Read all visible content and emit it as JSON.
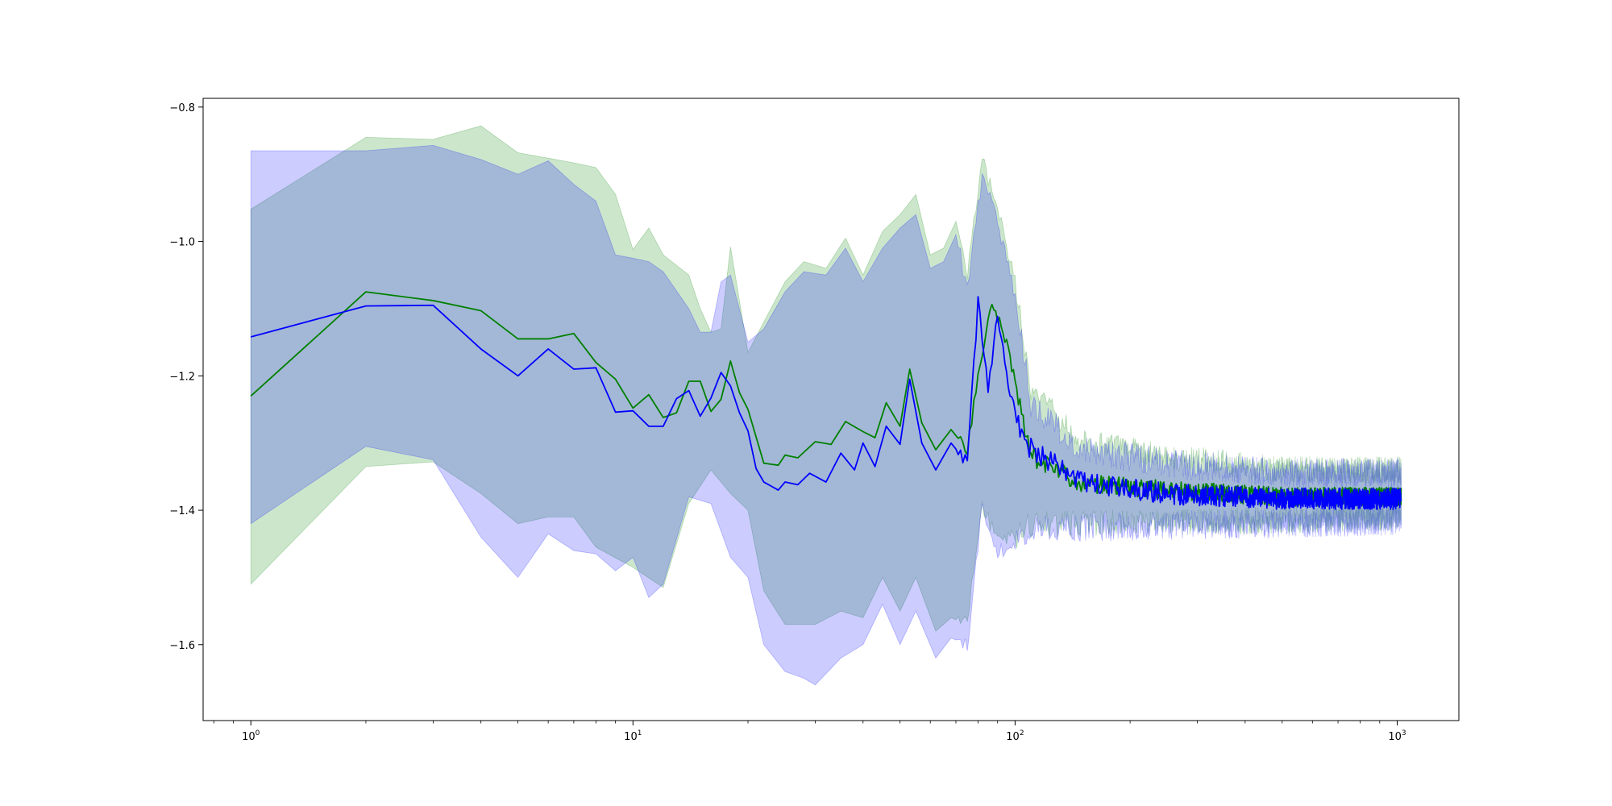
{
  "chart_data": {
    "type": "line",
    "title": "",
    "xlabel": "",
    "ylabel": "",
    "xscale": "log",
    "xlim": [
      0.75,
      1450
    ],
    "ylim": [
      -1.713,
      -0.787
    ],
    "grid": false,
    "legend": "none",
    "x_ticks": [
      {
        "base": "10",
        "exp": "0",
        "value": 1
      },
      {
        "base": "10",
        "exp": "1",
        "value": 10
      },
      {
        "base": "10",
        "exp": "2",
        "value": 100
      },
      {
        "base": "10",
        "exp": "3",
        "value": 1000
      }
    ],
    "y_ticks": [
      {
        "label": "−0.8",
        "value": -0.8
      },
      {
        "label": "−1.0",
        "value": -1.0
      },
      {
        "label": "−1.2",
        "value": -1.2
      },
      {
        "label": "−1.4",
        "value": -1.4
      },
      {
        "label": "−1.6",
        "value": -1.6
      }
    ],
    "series": [
      {
        "color": "#008000",
        "band_color": "#008000",
        "mean_anchors": [
          [
            1,
            -1.23
          ],
          [
            2,
            -1.075
          ],
          [
            3,
            -1.088
          ],
          [
            4,
            -1.103
          ],
          [
            5,
            -1.145
          ],
          [
            6,
            -1.145
          ],
          [
            7,
            -1.137
          ],
          [
            8,
            -1.18
          ],
          [
            9,
            -1.205
          ],
          [
            10,
            -1.248
          ],
          [
            11,
            -1.228
          ],
          [
            12,
            -1.262
          ],
          [
            13,
            -1.255
          ],
          [
            14,
            -1.208
          ],
          [
            15,
            -1.208
          ],
          [
            16,
            -1.253
          ],
          [
            17,
            -1.235
          ],
          [
            18,
            -1.178
          ],
          [
            19,
            -1.225
          ],
          [
            20,
            -1.25
          ],
          [
            22,
            -1.33
          ],
          [
            24,
            -1.333
          ],
          [
            25,
            -1.318
          ],
          [
            27,
            -1.322
          ],
          [
            30,
            -1.298
          ],
          [
            33,
            -1.302
          ],
          [
            36,
            -1.268
          ],
          [
            40,
            -1.283
          ],
          [
            43,
            -1.292
          ],
          [
            46,
            -1.24
          ],
          [
            50,
            -1.275
          ],
          [
            53,
            -1.19
          ],
          [
            57,
            -1.27
          ],
          [
            62,
            -1.31
          ],
          [
            68,
            -1.28
          ],
          [
            75,
            -1.31
          ],
          [
            80,
            -1.2
          ],
          [
            87,
            -1.09
          ],
          [
            95,
            -1.15
          ],
          [
            110,
            -1.32
          ],
          [
            150,
            -1.36
          ],
          [
            250,
            -1.37
          ],
          [
            500,
            -1.38
          ],
          [
            1024,
            -1.38
          ]
        ],
        "upper_anchors": [
          [
            1,
            -0.952
          ],
          [
            2,
            -0.845
          ],
          [
            3,
            -0.848
          ],
          [
            4,
            -0.828
          ],
          [
            5,
            -0.868
          ],
          [
            7,
            -0.883
          ],
          [
            8,
            -0.89
          ],
          [
            9,
            -0.93
          ],
          [
            10,
            -1.012
          ],
          [
            11,
            -0.98
          ],
          [
            12,
            -1.02
          ],
          [
            14,
            -1.05
          ],
          [
            15,
            -1.1
          ],
          [
            16,
            -1.135
          ],
          [
            17,
            -1.13
          ],
          [
            18,
            -1.008
          ],
          [
            20,
            -1.165
          ],
          [
            22,
            -1.12
          ],
          [
            25,
            -1.06
          ],
          [
            28,
            -1.03
          ],
          [
            32,
            -1.04
          ],
          [
            36,
            -0.995
          ],
          [
            40,
            -1.05
          ],
          [
            45,
            -0.985
          ],
          [
            50,
            -0.96
          ],
          [
            55,
            -0.93
          ],
          [
            60,
            -1.02
          ],
          [
            65,
            -1.01
          ],
          [
            70,
            -0.97
          ],
          [
            75,
            -1.05
          ],
          [
            82,
            -0.88
          ],
          [
            90,
            -0.95
          ],
          [
            100,
            -1.06
          ],
          [
            110,
            -1.22
          ],
          [
            150,
            -1.3
          ],
          [
            250,
            -1.32
          ],
          [
            500,
            -1.34
          ],
          [
            1024,
            -1.34
          ]
        ],
        "lower_anchors": [
          [
            1,
            -1.51
          ],
          [
            2,
            -1.335
          ],
          [
            3,
            -1.328
          ],
          [
            4,
            -1.375
          ],
          [
            5,
            -1.42
          ],
          [
            6,
            -1.41
          ],
          [
            7,
            -1.41
          ],
          [
            8,
            -1.455
          ],
          [
            10,
            -1.485
          ],
          [
            12,
            -1.515
          ],
          [
            14,
            -1.39
          ],
          [
            16,
            -1.34
          ],
          [
            18,
            -1.375
          ],
          [
            20,
            -1.4
          ],
          [
            22,
            -1.52
          ],
          [
            25,
            -1.57
          ],
          [
            30,
            -1.57
          ],
          [
            35,
            -1.55
          ],
          [
            40,
            -1.56
          ],
          [
            45,
            -1.5
          ],
          [
            50,
            -1.55
          ],
          [
            55,
            -1.5
          ],
          [
            62,
            -1.58
          ],
          [
            68,
            -1.56
          ],
          [
            75,
            -1.57
          ],
          [
            82,
            -1.39
          ],
          [
            90,
            -1.45
          ],
          [
            100,
            -1.44
          ],
          [
            110,
            -1.42
          ],
          [
            150,
            -1.42
          ],
          [
            500,
            -1.415
          ],
          [
            1024,
            -1.41
          ]
        ],
        "noise_seed": 11,
        "noise_amp": 0.014,
        "band_noise_amp": 0.02
      },
      {
        "color": "#0000ff",
        "band_color": "#0000ff",
        "mean_anchors": [
          [
            1,
            -1.142
          ],
          [
            2,
            -1.096
          ],
          [
            3,
            -1.095
          ],
          [
            4,
            -1.16
          ],
          [
            5,
            -1.2
          ],
          [
            6,
            -1.16
          ],
          [
            7,
            -1.19
          ],
          [
            8,
            -1.188
          ],
          [
            9,
            -1.254
          ],
          [
            10,
            -1.252
          ],
          [
            11,
            -1.275
          ],
          [
            12,
            -1.275
          ],
          [
            13,
            -1.234
          ],
          [
            14,
            -1.222
          ],
          [
            15,
            -1.26
          ],
          [
            16,
            -1.233
          ],
          [
            17,
            -1.195
          ],
          [
            18,
            -1.215
          ],
          [
            19,
            -1.255
          ],
          [
            20,
            -1.282
          ],
          [
            21,
            -1.338
          ],
          [
            22,
            -1.358
          ],
          [
            24,
            -1.37
          ],
          [
            25,
            -1.358
          ],
          [
            27,
            -1.362
          ],
          [
            29,
            -1.345
          ],
          [
            32,
            -1.358
          ],
          [
            35,
            -1.315
          ],
          [
            38,
            -1.34
          ],
          [
            40,
            -1.3
          ],
          [
            43,
            -1.335
          ],
          [
            46,
            -1.275
          ],
          [
            50,
            -1.302
          ],
          [
            53,
            -1.205
          ],
          [
            57,
            -1.3
          ],
          [
            62,
            -1.34
          ],
          [
            68,
            -1.3
          ],
          [
            75,
            -1.33
          ],
          [
            80,
            -1.09
          ],
          [
            85,
            -1.22
          ],
          [
            90,
            -1.11
          ],
          [
            95,
            -1.2
          ],
          [
            105,
            -1.3
          ],
          [
            150,
            -1.36
          ],
          [
            250,
            -1.375
          ],
          [
            500,
            -1.383
          ],
          [
            1024,
            -1.383
          ]
        ],
        "upper_anchors": [
          [
            1,
            -0.865
          ],
          [
            2,
            -0.865
          ],
          [
            3,
            -0.857
          ],
          [
            4,
            -0.878
          ],
          [
            5,
            -0.9
          ],
          [
            6,
            -0.88
          ],
          [
            7,
            -0.915
          ],
          [
            8,
            -0.94
          ],
          [
            9,
            -1.02
          ],
          [
            10,
            -1.025
          ],
          [
            11,
            -1.03
          ],
          [
            12,
            -1.045
          ],
          [
            14,
            -1.1
          ],
          [
            15,
            -1.135
          ],
          [
            16,
            -1.135
          ],
          [
            17,
            -1.06
          ],
          [
            18,
            -1.05
          ],
          [
            20,
            -1.15
          ],
          [
            22,
            -1.13
          ],
          [
            25,
            -1.075
          ],
          [
            28,
            -1.045
          ],
          [
            32,
            -1.05
          ],
          [
            36,
            -1.01
          ],
          [
            40,
            -1.06
          ],
          [
            45,
            -1.01
          ],
          [
            50,
            -0.98
          ],
          [
            55,
            -0.96
          ],
          [
            60,
            -1.04
          ],
          [
            65,
            -1.03
          ],
          [
            70,
            -0.99
          ],
          [
            75,
            -1.07
          ],
          [
            82,
            -0.9
          ],
          [
            90,
            -0.97
          ],
          [
            100,
            -1.08
          ],
          [
            110,
            -1.24
          ],
          [
            150,
            -1.31
          ],
          [
            250,
            -1.33
          ],
          [
            500,
            -1.345
          ],
          [
            1024,
            -1.345
          ]
        ],
        "lower_anchors": [
          [
            1,
            -1.42
          ],
          [
            2,
            -1.305
          ],
          [
            3,
            -1.325
          ],
          [
            4,
            -1.44
          ],
          [
            5,
            -1.5
          ],
          [
            6,
            -1.435
          ],
          [
            7,
            -1.46
          ],
          [
            8,
            -1.465
          ],
          [
            9,
            -1.49
          ],
          [
            10,
            -1.47
          ],
          [
            11,
            -1.53
          ],
          [
            12,
            -1.51
          ],
          [
            14,
            -1.38
          ],
          [
            16,
            -1.39
          ],
          [
            18,
            -1.47
          ],
          [
            20,
            -1.5
          ],
          [
            22,
            -1.6
          ],
          [
            25,
            -1.64
          ],
          [
            28,
            -1.65
          ],
          [
            30,
            -1.66
          ],
          [
            35,
            -1.62
          ],
          [
            40,
            -1.6
          ],
          [
            45,
            -1.54
          ],
          [
            50,
            -1.6
          ],
          [
            55,
            -1.55
          ],
          [
            62,
            -1.62
          ],
          [
            68,
            -1.59
          ],
          [
            75,
            -1.6
          ],
          [
            82,
            -1.4
          ],
          [
            90,
            -1.46
          ],
          [
            100,
            -1.45
          ],
          [
            110,
            -1.43
          ],
          [
            150,
            -1.425
          ],
          [
            500,
            -1.42
          ],
          [
            1024,
            -1.415
          ]
        ],
        "noise_seed": 7,
        "noise_amp": 0.016,
        "band_noise_amp": 0.022
      }
    ]
  }
}
